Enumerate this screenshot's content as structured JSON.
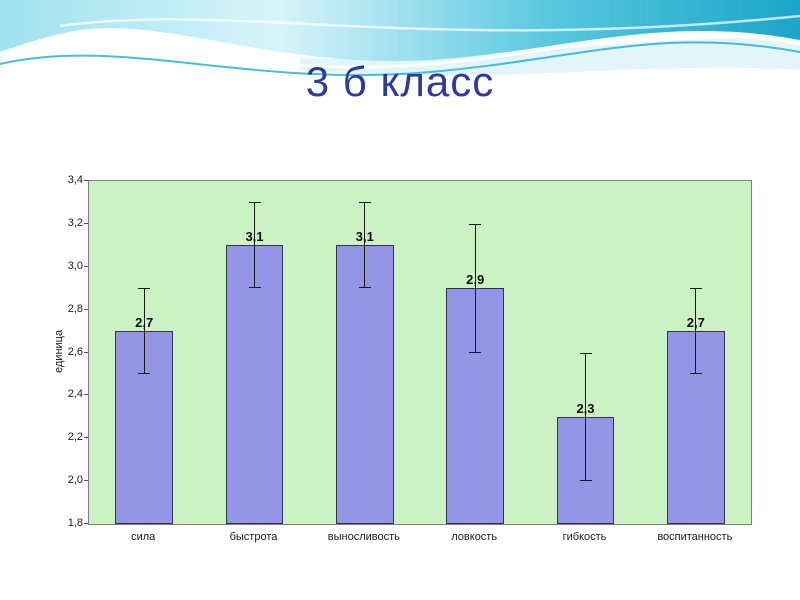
{
  "slide": {
    "title": "3 б класс"
  },
  "chart_data": {
    "type": "bar",
    "title": "3 б класс",
    "categories": [
      "сила",
      "быстрота",
      "выносливость",
      "ловкость",
      "гибкость",
      "воспитанность"
    ],
    "values": [
      2.7,
      3.1,
      3.1,
      2.9,
      2.3,
      2.7
    ],
    "errors": [
      0.2,
      0.2,
      0.2,
      0.3,
      0.3,
      0.2
    ],
    "data_labels": [
      "2,7",
      "3,1",
      "3,1",
      "2,9",
      "2,3",
      "2,7"
    ],
    "ylabel": "единица",
    "xlabel": "",
    "ylim": [
      1.8,
      3.4
    ],
    "ytick_step": 0.2,
    "ytick_labels": [
      "3,4",
      "3,2",
      "3,0",
      "2,8",
      "2,6",
      "2,4",
      "2,2",
      "2,0",
      "1,8"
    ],
    "grid": false,
    "legend": false
  },
  "colors": {
    "title": "#2e3a9e",
    "bar_fill": "#9595e8",
    "bar_border": "#33334d",
    "plot_bg": "#ccf2c4",
    "plot_border": "#7f7f7f",
    "error_bar": "#1a1a1a",
    "wave_teal": "#1ba5c9"
  }
}
